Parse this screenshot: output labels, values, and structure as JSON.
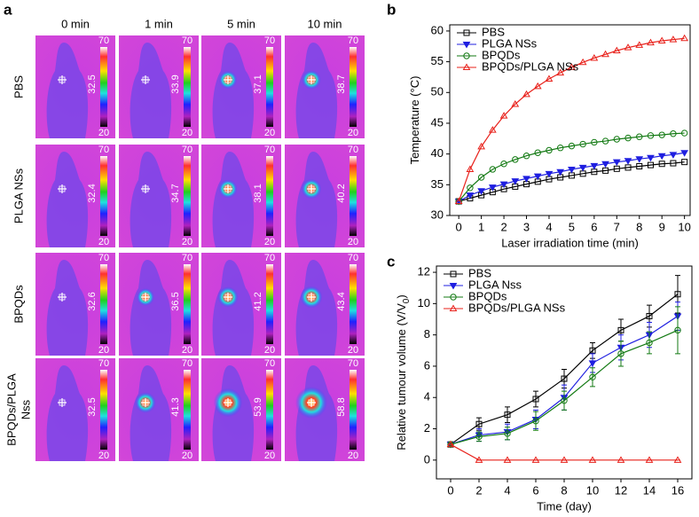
{
  "panel_labels": [
    "a",
    "b",
    "c"
  ],
  "thermal_panel": {
    "columns": [
      "0 min",
      "1 min",
      "5 min",
      "10 min"
    ],
    "colorbar_max": 70,
    "colorbar_min": 20,
    "rows": [
      {
        "label": [
          "PBS"
        ],
        "temps": [
          32.5,
          33.9,
          37.1,
          38.7
        ]
      },
      {
        "label": [
          "PLGA NSs"
        ],
        "temps": [
          32.4,
          34.7,
          38.1,
          40.2
        ]
      },
      {
        "label": [
          "BPQDs"
        ],
        "temps": [
          32.6,
          36.5,
          41.2,
          43.4
        ]
      },
      {
        "label": [
          "BPQDs/PLGA",
          "Nss"
        ],
        "temps": [
          32.5,
          41.3,
          53.9,
          58.8
        ]
      }
    ]
  },
  "chart_data": [
    {
      "type": "line",
      "x_label": "Laser irradiation time (min)",
      "y_label": "Temperature (°C)",
      "x": [
        0,
        0.5,
        1,
        1.5,
        2,
        2.5,
        3,
        3.5,
        4,
        4.5,
        5,
        5.5,
        6,
        6.5,
        7,
        7.5,
        8,
        8.5,
        9,
        9.5,
        10
      ],
      "xlim": [
        -0.4,
        10.25
      ],
      "xticks": [
        0,
        1,
        2,
        3,
        4,
        5,
        6,
        7,
        8,
        9,
        10
      ],
      "ylim": [
        30,
        61
      ],
      "yticks": [
        30,
        35,
        40,
        45,
        50,
        55,
        60
      ],
      "series": [
        {
          "name": "PBS",
          "color": "#000000",
          "marker": "square",
          "values": [
            32.3,
            32.8,
            33.3,
            33.8,
            34.3,
            34.7,
            35.1,
            35.5,
            35.9,
            36.2,
            36.5,
            36.8,
            37.1,
            37.3,
            37.6,
            37.8,
            38.0,
            38.2,
            38.4,
            38.5,
            38.7
          ]
        },
        {
          "name": "PLGA NSs",
          "color": "#1f1fe0",
          "marker": "down",
          "values": [
            32.3,
            33.3,
            34.0,
            34.6,
            35.1,
            35.6,
            36.0,
            36.4,
            36.8,
            37.1,
            37.5,
            37.8,
            38.1,
            38.4,
            38.7,
            38.9,
            39.2,
            39.4,
            39.7,
            39.9,
            40.2
          ]
        },
        {
          "name": "BPQDs",
          "color": "#137a13",
          "marker": "circle",
          "values": [
            32.3,
            34.5,
            36.2,
            37.5,
            38.4,
            39.1,
            39.7,
            40.2,
            40.6,
            41.0,
            41.3,
            41.6,
            41.9,
            42.1,
            42.4,
            42.6,
            42.8,
            43.0,
            43.1,
            43.3,
            43.4
          ]
        },
        {
          "name": "BPQDs/PLGA NSs",
          "color": "#e8201a",
          "marker": "up",
          "values": [
            32.3,
            37.5,
            41.2,
            43.9,
            46.2,
            48.1,
            49.7,
            51.0,
            52.2,
            53.2,
            54.1,
            54.9,
            55.6,
            56.2,
            56.8,
            57.3,
            57.7,
            58.1,
            58.4,
            58.6,
            58.8
          ]
        }
      ]
    },
    {
      "type": "line",
      "x_label": "Time (day)",
      "y_label": "Relative tumour volume (V/V",
      "y_label_sub": "0",
      "y_label_end": ")",
      "x": [
        0,
        2,
        4,
        6,
        8,
        10,
        12,
        14,
        16
      ],
      "xlim": [
        -1,
        17
      ],
      "xticks": [
        0,
        2,
        4,
        6,
        8,
        10,
        12,
        14,
        16
      ],
      "ylim": [
        -1.2,
        12.4
      ],
      "yticks": [
        0,
        2,
        4,
        6,
        8,
        10,
        12
      ],
      "series": [
        {
          "name": "PBS",
          "color": "#000000",
          "marker": "square",
          "values": [
            1.0,
            2.3,
            2.9,
            3.9,
            5.2,
            7.0,
            8.3,
            9.2,
            10.6
          ],
          "errors": [
            0.1,
            0.4,
            0.5,
            0.5,
            0.6,
            0.5,
            0.7,
            0.7,
            1.2
          ]
        },
        {
          "name": "PLGA Nss",
          "color": "#1f1fe0",
          "marker": "down",
          "values": [
            1.0,
            1.6,
            1.8,
            2.6,
            4.0,
            6.2,
            7.2,
            8.0,
            9.2
          ],
          "errors": [
            0.1,
            0.4,
            0.5,
            0.6,
            0.8,
            0.6,
            0.8,
            0.8,
            0.9
          ]
        },
        {
          "name": "BPQDs",
          "color": "#137a13",
          "marker": "circle",
          "values": [
            1.0,
            1.5,
            1.7,
            2.5,
            3.8,
            5.3,
            6.8,
            7.5,
            8.3
          ],
          "errors": [
            0.1,
            0.3,
            0.4,
            0.6,
            0.6,
            0.6,
            0.8,
            0.7,
            1.5
          ]
        },
        {
          "name": "BPQDs/PLGA NSs",
          "color": "#e8201a",
          "marker": "up",
          "values": [
            1.0,
            0,
            0,
            0,
            0,
            0,
            0,
            0,
            0
          ],
          "errors": [
            0,
            0,
            0,
            0,
            0,
            0,
            0,
            0,
            0
          ]
        }
      ]
    }
  ]
}
